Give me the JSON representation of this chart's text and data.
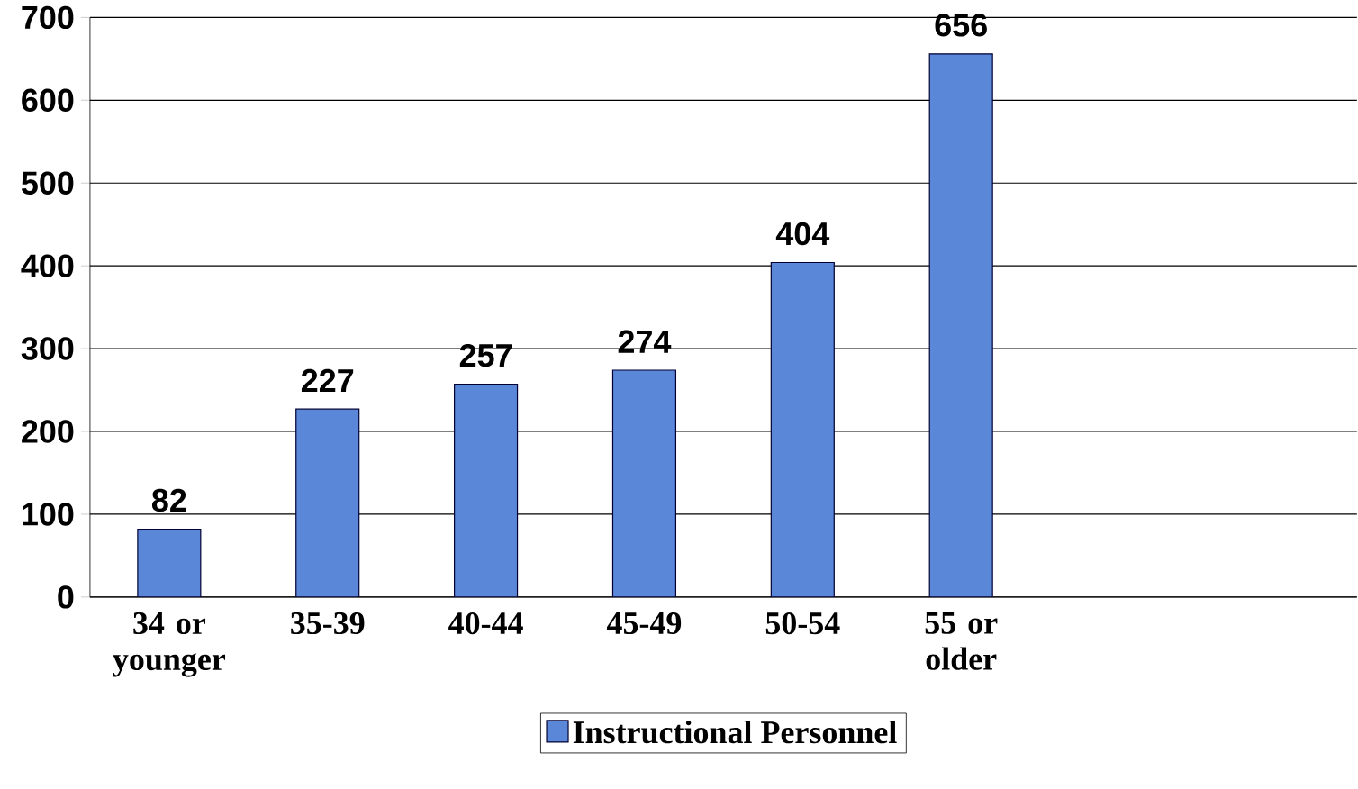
{
  "chart_data": {
    "type": "bar",
    "categories": [
      "34 or younger",
      "35-39",
      "40-44",
      "45-49",
      "50-54",
      "55 or older",
      null,
      null
    ],
    "series": [
      {
        "name": "Instructional Personnel",
        "color": "#5b87d9",
        "values": [
          82,
          227,
          257,
          274,
          404,
          656,
          null,
          null
        ]
      }
    ],
    "ylim": [
      0,
      700
    ],
    "yticks": [
      0,
      100,
      200,
      300,
      400,
      500,
      600,
      700
    ],
    "grid": "y",
    "legend": "bottom",
    "data_labels": true
  }
}
